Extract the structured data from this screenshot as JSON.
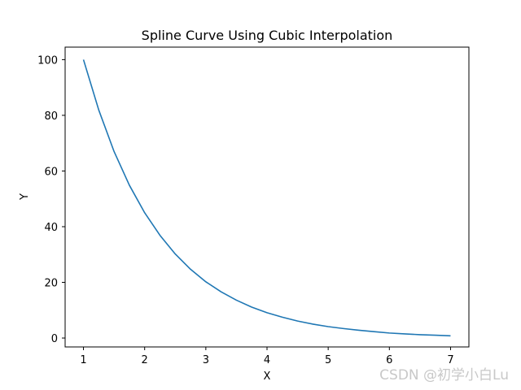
{
  "chart_data": {
    "type": "line",
    "title": "Spline Curve Using Cubic Interpolation",
    "xlabel": "X",
    "ylabel": "Y",
    "xlim": [
      0.7,
      7.3
    ],
    "ylim": [
      -3.2,
      104.5
    ],
    "xticks": [
      1,
      2,
      3,
      4,
      5,
      6,
      7
    ],
    "yticks": [
      0,
      20,
      40,
      60,
      80,
      100
    ],
    "grid": false,
    "series": [
      {
        "color": "#1f77b4",
        "x": [
          1,
          1.25,
          1.5,
          1.75,
          2,
          2.25,
          2.5,
          2.75,
          3,
          3.25,
          3.5,
          3.75,
          4,
          4.25,
          4.5,
          4.75,
          5,
          5.25,
          5.5,
          5.75,
          6,
          6.25,
          6.5,
          6.75,
          7
        ],
        "y": [
          100,
          81.9,
          67.0,
          54.9,
          45.0,
          36.9,
          30.2,
          24.7,
          20.2,
          16.6,
          13.6,
          11.1,
          9.1,
          7.5,
          6.1,
          5.0,
          4.1,
          3.4,
          2.8,
          2.3,
          1.8,
          1.5,
          1.2,
          1.0,
          0.8
        ]
      }
    ]
  },
  "watermark": "CSDN @初学小白Lu"
}
